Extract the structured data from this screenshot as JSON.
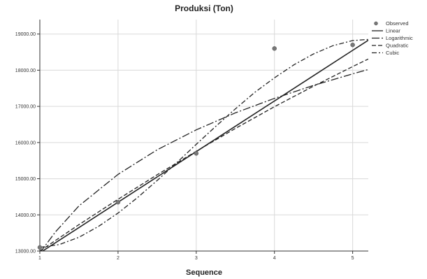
{
  "chart_data": {
    "type": "line",
    "title": "Produksi (Ton)",
    "xlabel": "Sequence",
    "ylabel": "",
    "xlim": [
      1,
      5.2
    ],
    "ylim": [
      13000,
      19400
    ],
    "xticks": [
      1,
      2,
      3,
      4,
      5
    ],
    "yticks": [
      13000,
      14000,
      15000,
      16000,
      17000,
      18000,
      19000
    ],
    "xtick_labels": [
      "1",
      "2",
      "3",
      "4",
      "5"
    ],
    "ytick_labels": [
      "13000.00",
      "14000.00",
      "15000.00",
      "16000.00",
      "17000.00",
      "18000.00",
      "19000.00"
    ],
    "grid": true,
    "legend_position": "right",
    "observed": {
      "name": "Observed",
      "x": [
        1,
        2,
        3,
        4,
        5
      ],
      "y": [
        13100,
        14350,
        15700,
        18600,
        18700
      ]
    },
    "series": [
      {
        "name": "Linear",
        "style": "solid",
        "x": [
          1,
          1.5,
          2,
          2.5,
          3,
          3.5,
          4,
          4.5,
          5,
          5.2
        ],
        "y": [
          12950,
          13650,
          14350,
          15050,
          15750,
          16450,
          17150,
          17850,
          18550,
          18830
        ]
      },
      {
        "name": "Logarithmic",
        "style": "longdash-dot",
        "x": [
          1,
          1.2,
          1.5,
          2,
          2.5,
          3,
          3.5,
          4,
          4.5,
          5,
          5.2
        ],
        "y": [
          12950,
          13530,
          14250,
          15120,
          15800,
          16350,
          16820,
          17220,
          17580,
          17900,
          18020
        ]
      },
      {
        "name": "Quadratic",
        "style": "dash",
        "x": [
          1,
          1.5,
          2,
          2.5,
          3,
          3.5,
          4,
          4.5,
          5,
          5.2
        ],
        "y": [
          13000,
          13730,
          14430,
          15110,
          15760,
          16390,
          16990,
          17560,
          18100,
          18310
        ]
      },
      {
        "name": "Cubic",
        "style": "dashdot",
        "x": [
          1,
          1.25,
          1.5,
          1.75,
          2,
          2.25,
          2.5,
          2.75,
          3,
          3.25,
          3.5,
          3.75,
          4,
          4.25,
          4.5,
          4.75,
          5,
          5.2
        ],
        "y": [
          13100,
          13180,
          13380,
          13680,
          14050,
          14480,
          14950,
          15440,
          15950,
          16450,
          16930,
          17390,
          17790,
          18150,
          18450,
          18680,
          18820,
          18850
        ]
      }
    ],
    "legend": [
      {
        "name": "Observed",
        "marker": "circle"
      },
      {
        "name": "Linear",
        "style": "solid"
      },
      {
        "name": "Logarithmic",
        "style": "longdash-dot"
      },
      {
        "name": "Quadratic",
        "style": "dash"
      },
      {
        "name": "Cubic",
        "style": "dashdot"
      }
    ],
    "colors": {
      "lines": "#222222",
      "observed": "#777777",
      "grid": "#d9d9d9"
    }
  }
}
